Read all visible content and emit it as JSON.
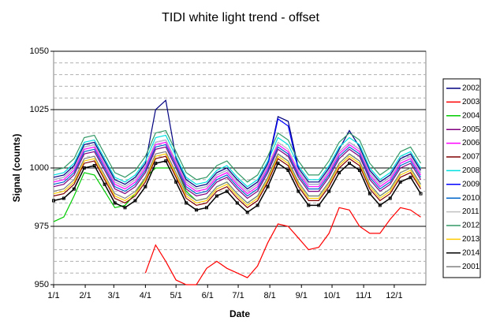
{
  "chart_data": {
    "type": "line",
    "title": "TIDI white light trend - offset",
    "x_label": "Date",
    "y_label": "Signal (counts)",
    "x": [
      0,
      10,
      20,
      30,
      40,
      50,
      60,
      70,
      80,
      90,
      100,
      110,
      120,
      130,
      140,
      150,
      160,
      170,
      180,
      190,
      200,
      210,
      220,
      230,
      240,
      250,
      260,
      270,
      280,
      290,
      300,
      310,
      320,
      330,
      340,
      350,
      360
    ],
    "xlim": [
      0,
      365
    ],
    "xticks": [
      {
        "value": 0,
        "label": "1/1"
      },
      {
        "value": 31,
        "label": "2/1"
      },
      {
        "value": 59,
        "label": "3/1"
      },
      {
        "value": 90,
        "label": "4/1"
      },
      {
        "value": 120,
        "label": "5/1"
      },
      {
        "value": 151,
        "label": "6/1"
      },
      {
        "value": 181,
        "label": "7/1"
      },
      {
        "value": 212,
        "label": "8/1"
      },
      {
        "value": 243,
        "label": "9/1"
      },
      {
        "value": 273,
        "label": "10/1"
      },
      {
        "value": 304,
        "label": "11/1"
      },
      {
        "value": 334,
        "label": "12/1"
      }
    ],
    "ylim": [
      950,
      1050
    ],
    "yticks": [
      950,
      975,
      1000,
      1025,
      1050
    ],
    "grid": true,
    "minor_grid_step": 5,
    "legend": "right",
    "series": [
      {
        "name": "2002",
        "color": "#000080",
        "values": [
          996,
          997,
          1001,
          1010,
          1011,
          1003,
          995,
          993,
          996,
          1002,
          1025,
          1029,
          1004,
          995,
          992,
          993,
          998,
          1000,
          995,
          991,
          994,
          1002,
          1022,
          1020,
          1000,
          994,
          994,
          1000,
          1008,
          1016,
          1009,
          999,
          994,
          997,
          1004,
          1006,
          999
        ]
      },
      {
        "name": "2003",
        "color": "#ff0000",
        "values": [
          null,
          null,
          null,
          null,
          null,
          null,
          null,
          null,
          null,
          955,
          967,
          960,
          952,
          950,
          950,
          957,
          960,
          957,
          955,
          953,
          958,
          968,
          976,
          975,
          970,
          965,
          966,
          972,
          983,
          982,
          975,
          972,
          972,
          978,
          983,
          982,
          979
        ]
      },
      {
        "name": "2004",
        "color": "#00cc00",
        "values": [
          977,
          979,
          988,
          998,
          997,
          990,
          983,
          984,
          989,
          996,
          1000,
          1000,
          1000,
          990,
          986,
          987,
          992,
          994,
          989,
          985,
          988,
          996,
          1006,
          1003,
          994,
          988,
          988,
          994,
          1002,
          1006,
          1003,
          993,
          988,
          991,
          998,
          1000,
          993
        ]
      },
      {
        "name": "2005",
        "color": "#800080",
        "values": [
          992,
          993,
          997,
          1006,
          1007,
          999,
          991,
          989,
          992,
          998,
          1008,
          1009,
          1000,
          991,
          988,
          989,
          994,
          996,
          991,
          987,
          990,
          998,
          1008,
          1005,
          996,
          990,
          990,
          996,
          1004,
          1008,
          1005,
          995,
          990,
          993,
          1000,
          1002,
          995
        ]
      },
      {
        "name": "2006",
        "color": "#ff00ff",
        "values": [
          994,
          995,
          999,
          1008,
          1009,
          1001,
          993,
          991,
          994,
          1000,
          1010,
          1011,
          1002,
          993,
          990,
          991,
          996,
          998,
          993,
          989,
          992,
          1000,
          1010,
          1007,
          998,
          992,
          992,
          998,
          1006,
          1010,
          1007,
          997,
          992,
          995,
          1002,
          1004,
          997
        ]
      },
      {
        "name": "2007",
        "color": "#800000",
        "values": [
          988,
          989,
          993,
          1002,
          1003,
          995,
          987,
          985,
          988,
          994,
          1004,
          1005,
          996,
          987,
          984,
          985,
          990,
          992,
          987,
          983,
          986,
          994,
          1004,
          1001,
          992,
          986,
          986,
          992,
          1000,
          1004,
          1001,
          991,
          986,
          989,
          996,
          998,
          991
        ]
      },
      {
        "name": "2008",
        "color": "#00e0e0",
        "values": [
          997,
          998,
          1002,
          1011,
          1012,
          1004,
          996,
          994,
          997,
          1003,
          1013,
          1014,
          1005,
          996,
          993,
          994,
          999,
          1001,
          996,
          992,
          995,
          1003,
          1013,
          1010,
          1001,
          995,
          995,
          1001,
          1009,
          1013,
          1010,
          1000,
          995,
          998,
          1005,
          1007,
          1000
        ]
      },
      {
        "name": "2009",
        "color": "#0000ff",
        "values": [
          995,
          996,
          1000,
          1009,
          1010,
          1002,
          994,
          992,
          995,
          1001,
          1011,
          1012,
          1003,
          994,
          991,
          992,
          997,
          999,
          994,
          990,
          993,
          1001,
          1021,
          1018,
          999,
          993,
          993,
          999,
          1007,
          1011,
          1008,
          998,
          993,
          996,
          1003,
          1005,
          998
        ]
      },
      {
        "name": "2010",
        "color": "#0066cc",
        "values": [
          993,
          994,
          998,
          1007,
          1008,
          1000,
          992,
          990,
          993,
          999,
          1009,
          1010,
          1001,
          992,
          989,
          990,
          995,
          997,
          992,
          988,
          991,
          999,
          1009,
          1006,
          997,
          991,
          991,
          997,
          1005,
          1009,
          1006,
          996,
          991,
          994,
          1001,
          1003,
          996
        ]
      },
      {
        "name": "2011",
        "color": "#c0c0c0",
        "values": [
          995,
          996,
          1000,
          1009,
          1010,
          1002,
          994,
          992,
          995,
          1001,
          1011,
          1012,
          1003,
          994,
          991,
          992,
          997,
          999,
          994,
          990,
          993,
          1001,
          1011,
          1008,
          999,
          993,
          993,
          999,
          1007,
          1011,
          1008,
          998,
          993,
          996,
          1003,
          1005,
          998
        ]
      },
      {
        "name": "2012",
        "color": "#339966",
        "values": [
          999,
          1000,
          1004,
          1013,
          1014,
          1006,
          998,
          996,
          999,
          1005,
          1015,
          1016,
          1007,
          998,
          995,
          996,
          1001,
          1003,
          998,
          994,
          997,
          1005,
          1015,
          1012,
          1003,
          997,
          997,
          1003,
          1011,
          1015,
          1012,
          1002,
          997,
          1000,
          1007,
          1009,
          1002
        ]
      },
      {
        "name": "2013",
        "color": "#ffcc00",
        "values": [
          989,
          990,
          994,
          1003,
          1004,
          996,
          988,
          986,
          989,
          995,
          1005,
          1006,
          997,
          988,
          985,
          986,
          991,
          993,
          988,
          984,
          987,
          995,
          1005,
          1002,
          993,
          987,
          987,
          993,
          1001,
          1005,
          1002,
          992,
          987,
          990,
          997,
          999,
          992
        ]
      },
      {
        "name": "2014",
        "color": "#000000",
        "marker": "square",
        "values": [
          986,
          987,
          991,
          1000,
          1001,
          993,
          985,
          983,
          986,
          992,
          1002,
          1003,
          994,
          985,
          982,
          983,
          988,
          990,
          985,
          981,
          984,
          992,
          1002,
          999,
          990,
          984,
          984,
          990,
          998,
          1002,
          999,
          989,
          984,
          987,
          994,
          996,
          989
        ]
      },
      {
        "name": "2001",
        "color": "#808080",
        "values": [
          990,
          991,
          995,
          1004,
          1005,
          997,
          989,
          987,
          990,
          996,
          1006,
          1007,
          998,
          989,
          986,
          987,
          992,
          994,
          989,
          985,
          988,
          996,
          1006,
          1003,
          994,
          988,
          988,
          994,
          1002,
          1006,
          1003,
          993,
          988,
          991,
          998,
          1000,
          993
        ]
      }
    ]
  }
}
